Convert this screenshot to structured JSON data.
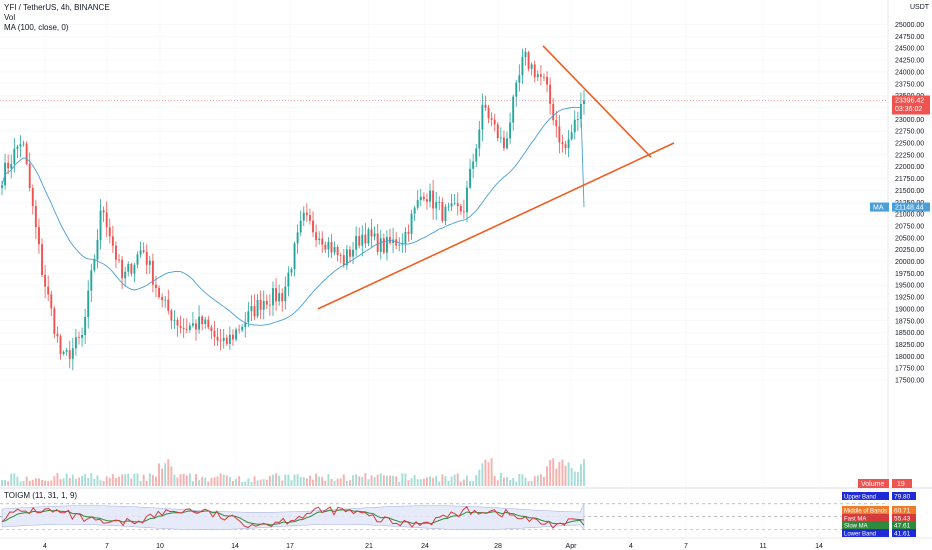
{
  "header": {
    "symbol_line": "YFI / TetherUS, 4h, BINANCE",
    "vol_label": "Vol",
    "ma_label": "MA (100, close, 0)"
  },
  "indicator": {
    "title": "TOIGM (11, 31, 1, 9)"
  },
  "price_axis": {
    "unit": "USDT",
    "ticks": [
      25000,
      24750,
      24500,
      24250,
      24000,
      23750,
      23500,
      23250,
      23000,
      22750,
      22500,
      22250,
      22000,
      21750,
      21500,
      21250,
      21000,
      20750,
      20500,
      20250,
      20000,
      19750,
      19500,
      19250,
      19000,
      18750,
      18500,
      18250,
      18000,
      17750,
      17500
    ],
    "last_price_label": "23396.42",
    "countdown_label": "03:36:02",
    "ma_value_label": "21148.44",
    "ma_tag": "MA",
    "volume_tag": "Volume",
    "volume_value": "19"
  },
  "indicator_labels": [
    {
      "name": "Upper Band",
      "value": "79.80",
      "color": "#1f2bd6"
    },
    {
      "name": "Middle of Bands",
      "value": "60.71",
      "color": "#f27b2a"
    },
    {
      "name": "Fast MA",
      "value": "55.43",
      "color": "#d43b3b"
    },
    {
      "name": "Slow MA",
      "value": "47.61",
      "color": "#2e8b3e"
    },
    {
      "name": "Lower Band",
      "value": "41.61",
      "color": "#1f2bd6"
    }
  ],
  "time_axis": [
    "4",
    "7",
    "10",
    "14",
    "17",
    "21",
    "24",
    "28",
    "Apr",
    "4",
    "7",
    "11",
    "14"
  ],
  "colors": {
    "up": "#26a69a",
    "down": "#ef5350",
    "ma": "#4a9fd8",
    "trendline": "#f25c1f",
    "price_line": "#ef5350"
  },
  "chart_data": {
    "type": "candlestick",
    "title": "YFI / TetherUS, 4h, BINANCE",
    "y_unit": "USDT",
    "ylim": [
      17400,
      25150
    ],
    "last_price": 23396.42,
    "ma_value": 21148.44,
    "anchors": [
      {
        "date": "2 (Mar)",
        "close": 21800
      },
      {
        "date": "3",
        "close": 22600
      },
      {
        "date": "5",
        "close": 19800
      },
      {
        "date": "6",
        "close": 17900
      },
      {
        "date": "7",
        "close": 18400
      },
      {
        "date": "8",
        "close": 21200
      },
      {
        "date": "9",
        "close": 19600
      },
      {
        "date": "10",
        "close": 20300
      },
      {
        "date": "11",
        "close": 19100
      },
      {
        "date": "12",
        "close": 18600
      },
      {
        "date": "13",
        "close": 18700
      },
      {
        "date": "14",
        "close": 18200
      },
      {
        "date": "15",
        "close": 18700
      },
      {
        "date": "16",
        "close": 19200
      },
      {
        "date": "17",
        "close": 19300
      },
      {
        "date": "18",
        "close": 20900
      },
      {
        "date": "19",
        "close": 20500
      },
      {
        "date": "20",
        "close": 20000
      },
      {
        "date": "21",
        "close": 20600
      },
      {
        "date": "22",
        "close": 20300
      },
      {
        "date": "23",
        "close": 20500
      },
      {
        "date": "24",
        "close": 21500
      },
      {
        "date": "25",
        "close": 21000
      },
      {
        "date": "26",
        "close": 21100
      },
      {
        "date": "27",
        "close": 23300
      },
      {
        "date": "28",
        "close": 22400
      },
      {
        "date": "29",
        "close": 24300
      },
      {
        "date": "30",
        "close": 23800
      },
      {
        "date": "31",
        "close": 22300
      },
      {
        "date": "Apr 1",
        "close": 23396.42
      }
    ],
    "trendlines": [
      {
        "name": "support",
        "from": {
          "date": "18",
          "price": 19000
        },
        "to": {
          "date": "Apr 4",
          "price": 22500
        }
      },
      {
        "name": "resistance",
        "from": {
          "date": "29",
          "price": 24550
        },
        "to": {
          "date": "Apr 3",
          "price": 22200
        }
      }
    ],
    "indicator": {
      "name": "TOIGM (11, 31, 1, 9)",
      "series": [
        {
          "name": "Upper Band",
          "last": 79.8
        },
        {
          "name": "Middle of Bands",
          "last": 60.71
        },
        {
          "name": "Fast MA",
          "last": 55.43
        },
        {
          "name": "Slow MA",
          "last": 47.61
        },
        {
          "name": "Lower Band",
          "last": 41.61
        }
      ]
    }
  }
}
